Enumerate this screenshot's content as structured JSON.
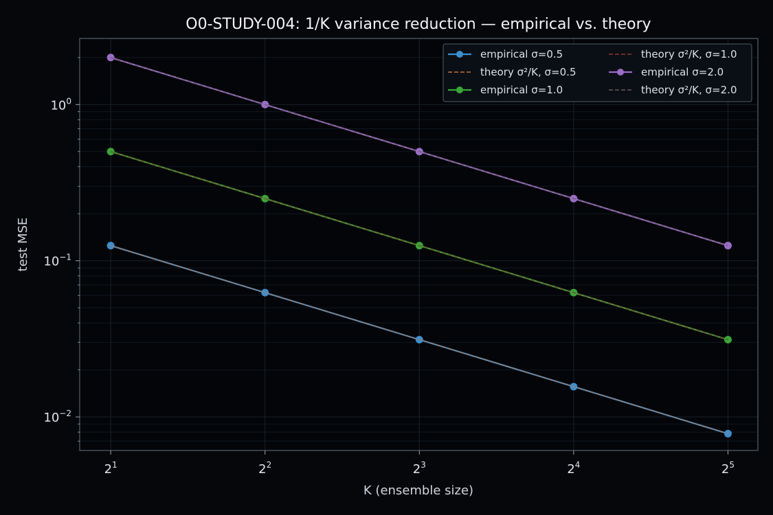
{
  "chart_data": {
    "type": "line",
    "title": "O0-STUDY-004: 1/K variance reduction — empirical vs. theory",
    "xlabel": "K (ensemble size)",
    "ylabel": "test MSE",
    "x_scale": "log2",
    "y_scale": "log10",
    "x": [
      2,
      4,
      8,
      16,
      32
    ],
    "x_tick_labels": [
      {
        "base": "2",
        "exp": "1"
      },
      {
        "base": "2",
        "exp": "2"
      },
      {
        "base": "2",
        "exp": "3"
      },
      {
        "base": "2",
        "exp": "4"
      },
      {
        "base": "2",
        "exp": "5"
      }
    ],
    "y_tick_labels": [
      {
        "base": "10",
        "exp": "0"
      },
      {
        "base": "10",
        "exp": "−1"
      },
      {
        "base": "10",
        "exp": "−2"
      }
    ],
    "y_ticks": [
      1,
      0.1,
      0.01
    ],
    "xlim": [
      1.74,
      36.6
    ],
    "ylim": [
      0.0061,
      2.65
    ],
    "grid": true,
    "legend_position": "top-right",
    "series": [
      {
        "name": "empirical σ=0.5",
        "kind": "empirical",
        "color": "#3b8fd0",
        "values": [
          0.125,
          0.0625,
          0.03125,
          0.015625,
          0.0078125
        ]
      },
      {
        "name": "theory σ²/K, σ=0.5",
        "kind": "theory",
        "color": "#c8703a",
        "values": [
          0.125,
          0.0625,
          0.03125,
          0.015625,
          0.0078125
        ]
      },
      {
        "name": "empirical σ=1.0",
        "kind": "empirical",
        "color": "#36a836",
        "values": [
          0.5,
          0.25,
          0.125,
          0.0625,
          0.03125
        ]
      },
      {
        "name": "theory σ²/K, σ=1.0",
        "kind": "theory",
        "color": "#8e3630",
        "values": [
          0.5,
          0.25,
          0.125,
          0.0625,
          0.03125
        ]
      },
      {
        "name": "empirical σ=2.0",
        "kind": "empirical",
        "color": "#9b6cc9",
        "values": [
          2.0,
          1.0,
          0.5,
          0.25,
          0.125
        ]
      },
      {
        "name": "theory σ²/K, σ=2.0",
        "kind": "theory",
        "color": "#6a5a5a",
        "values": [
          2.0,
          1.0,
          0.5,
          0.25,
          0.125
        ]
      }
    ]
  }
}
